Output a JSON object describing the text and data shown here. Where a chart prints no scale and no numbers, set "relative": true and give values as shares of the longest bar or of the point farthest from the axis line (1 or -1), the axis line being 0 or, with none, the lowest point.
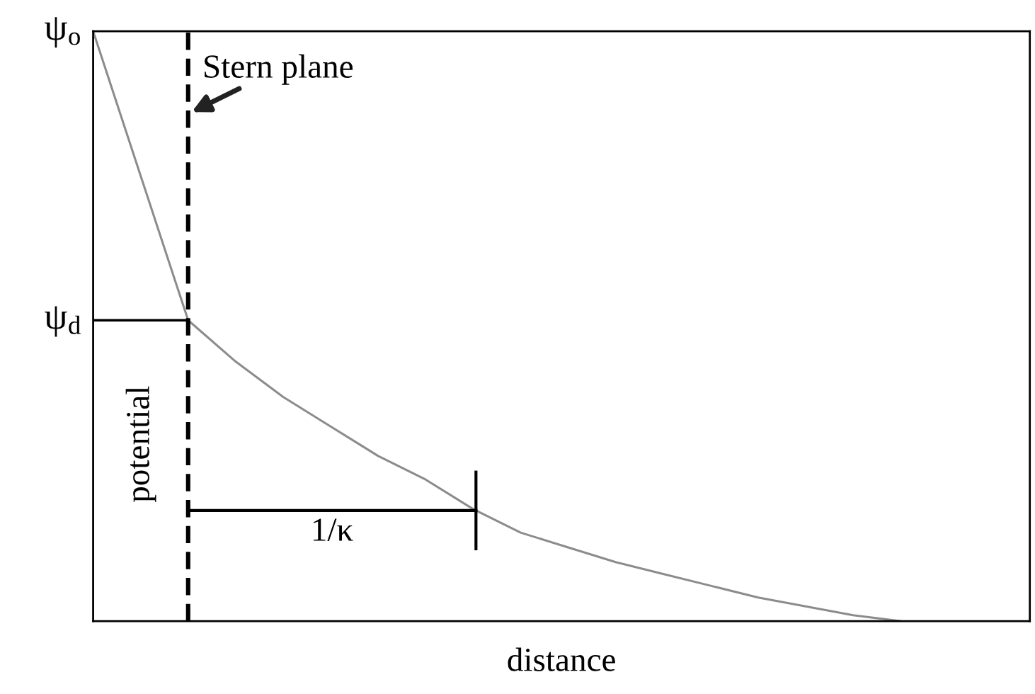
{
  "chart_data": {
    "type": "line",
    "relative": true,
    "xlabel": "distance",
    "ylabel": "potential",
    "categories": [
      null,
      null,
      null,
      null,
      null,
      null,
      null,
      null,
      null,
      null,
      null,
      null,
      null,
      null,
      null,
      null,
      null,
      null
    ],
    "series": [
      {
        "color": "#8c8c8c",
        "values": [
          1,
          0.755,
          0.51,
          0.44,
          0.38,
          0.33,
          0.28,
          0.24,
          0.19,
          0.15,
          0.125,
          0.1,
          0.08,
          0.06,
          0.04,
          0.025,
          0.01,
          0
        ]
      }
    ],
    "annotations": [
      "ψ$_{o}$",
      "ψ$_{d}$",
      "1/κ",
      "Stern plane"
    ]
  }
}
